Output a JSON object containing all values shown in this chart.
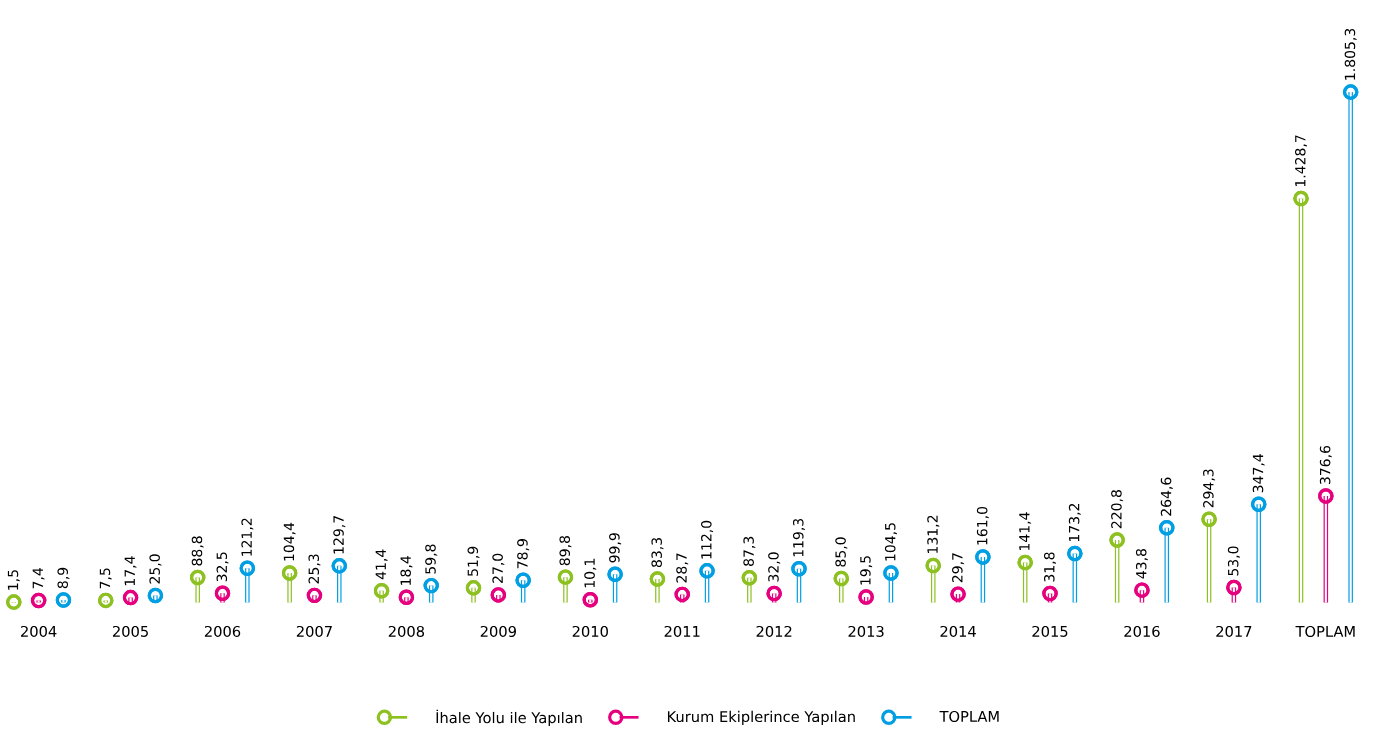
{
  "chart_data": {
    "type": "lollipop",
    "categories": [
      "2004",
      "2005",
      "2006",
      "2007",
      "2008",
      "2009",
      "2010",
      "2011",
      "2012",
      "2013",
      "2014",
      "2015",
      "2016",
      "2017",
      "TOPLAM"
    ],
    "series": [
      {
        "name": "İhale Yolu ile Yapılan",
        "color": "#8dc021",
        "values": [
          1.5,
          7.5,
          88.8,
          104.4,
          41.4,
          51.9,
          89.8,
          83.3,
          87.3,
          85.0,
          131.2,
          141.4,
          220.8,
          294.3,
          1428.7
        ],
        "value_labels": [
          "1,5",
          "7,5",
          "88,8",
          "104,4",
          "41,4",
          "51,9",
          "89,8",
          "83,3",
          "87,3",
          "85,0",
          "131,2",
          "141,4",
          "220,8",
          "294,3",
          "1.428,7"
        ]
      },
      {
        "name": "Kurum Ekiplerince Yapılan",
        "color": "#e5007e",
        "values": [
          7.4,
          17.4,
          32.5,
          25.3,
          18.4,
          27.0,
          10.1,
          28.7,
          32.0,
          19.5,
          29.7,
          31.8,
          43.8,
          53.0,
          376.6
        ],
        "value_labels": [
          "7,4",
          "17,4",
          "32,5",
          "25,3",
          "18,4",
          "27,0",
          "10,1",
          "28,7",
          "32,0",
          "19,5",
          "29,7",
          "31,8",
          "43,8",
          "53,0",
          "376,6"
        ]
      },
      {
        "name": "TOPLAM",
        "color": "#009fe3",
        "values": [
          8.9,
          25.0,
          121.2,
          129.7,
          59.8,
          78.9,
          99.9,
          112.0,
          119.3,
          104.5,
          161.0,
          173.2,
          264.6,
          347.4,
          1805.3
        ],
        "value_labels": [
          "8,9",
          "25,0",
          "121,2",
          "129,7",
          "59,8",
          "78,9",
          "99,9",
          "112,0",
          "119,3",
          "104,5",
          "161,0",
          "173,2",
          "264,6",
          "347,4",
          "1.805,3"
        ]
      }
    ],
    "legend": "bottom",
    "marker": "circle"
  }
}
